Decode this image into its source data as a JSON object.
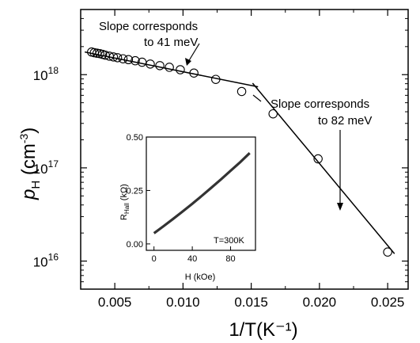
{
  "chart_data": [
    {
      "type": "scatter",
      "title": "",
      "xlabel": "1/T(K⁻¹)",
      "ylabel_main": "p",
      "ylabel_sub": "H",
      "ylabel_unit_open": " (cm",
      "ylabel_unit_exp": "-3",
      "ylabel_unit_close": ")",
      "xlim": [
        0.0025,
        0.0265
      ],
      "ylim": [
        5000000000000000.0,
        5e+18
      ],
      "yscale": "log",
      "grid": false,
      "legend": "none",
      "xticks": [
        {
          "value": 0.005,
          "label": "0.005"
        },
        {
          "value": 0.01,
          "label": "0.010"
        },
        {
          "value": 0.015,
          "label": "0.015"
        },
        {
          "value": 0.02,
          "label": "0.020"
        },
        {
          "value": 0.025,
          "label": "0.025"
        }
      ],
      "yticks": [
        {
          "value": 1e+16,
          "base": "10",
          "exp": "16"
        },
        {
          "value": 1e+17,
          "base": "10",
          "exp": "17"
        },
        {
          "value": 1e+18,
          "base": "10",
          "exp": "18"
        }
      ],
      "series": [
        {
          "marker": "open-circle",
          "x": [
            0.0033,
            0.0035,
            0.0037,
            0.0039,
            0.0041,
            0.0043,
            0.0046,
            0.0049,
            0.0052,
            0.0056,
            0.006,
            0.0065,
            0.007,
            0.0076,
            0.0083,
            0.009,
            0.0098,
            0.0108,
            0.0124,
            0.0143,
            0.0166,
            0.0199,
            0.025
          ],
          "y": [
            1.75e+18,
            1.72e+18,
            1.7e+18,
            1.68e+18,
            1.65e+18,
            1.62e+18,
            1.58e+18,
            1.55e+18,
            1.52e+18,
            1.48e+18,
            1.45e+18,
            1.41e+18,
            1.36e+18,
            1.3e+18,
            1.25e+18,
            1.2e+18,
            1.13e+18,
            1.04e+18,
            8.9e+17,
            6.6e+17,
            3.8e+17,
            1.25e+17,
            1.25e+16
          ]
        }
      ],
      "fit_lines": [
        {
          "x": [
            0.0028,
            0.0155
          ],
          "y": [
            1.75e+18,
            7.4e+17
          ]
        },
        {
          "x": [
            0.0151,
            0.0255
          ],
          "y": [
            8.1e+17,
            1.2e+16
          ]
        }
      ],
      "annotations": [
        {
          "lines": [
            "Slope corresponds",
            "to 41 meV"
          ]
        },
        {
          "lines": [
            "Slope corresponds",
            "to 82 meV"
          ]
        }
      ]
    },
    {
      "type": "line",
      "title": "",
      "xlabel": "H (kOe)",
      "ylabel_main": "R",
      "ylabel_sub": "Hall",
      "ylabel_unit": " (kΩ)",
      "xlim": [
        -8,
        106
      ],
      "ylim": [
        -0.03,
        0.5
      ],
      "xticks": [
        {
          "value": 0,
          "label": "0"
        },
        {
          "value": 40,
          "label": "40"
        },
        {
          "value": 80,
          "label": "80"
        }
      ],
      "yticks": [
        {
          "value": 0.0,
          "label": "0.00"
        },
        {
          "value": 0.25,
          "label": "0.25"
        },
        {
          "value": 0.5,
          "label": "0.50"
        }
      ],
      "annotation": "T=300K",
      "series": [
        {
          "x": [
            0,
            10,
            20,
            30,
            40,
            50,
            60,
            70,
            80,
            90,
            100
          ],
          "y": [
            0.05,
            0.083,
            0.117,
            0.152,
            0.188,
            0.225,
            0.263,
            0.302,
            0.342,
            0.382,
            0.425
          ]
        }
      ]
    }
  ]
}
